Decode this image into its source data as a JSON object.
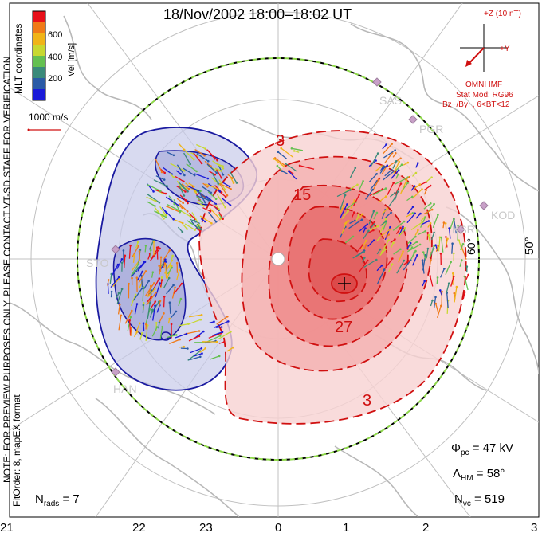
{
  "title": "18/Nov/2002 18:00–18:02 UT",
  "side_note_1": "NOTE: FOR PREVIEW PURPOSES ONLY. PLEASE CONTACT VT-SD STAFF FOR VERIFICATION.",
  "side_note_2": "FitOrder: 8, mapEX format",
  "coords_label": "MLT coordinates",
  "colorbar": {
    "label": "Vel [m/s]",
    "ticks": [
      "600",
      "400",
      "200"
    ],
    "colors": [
      "#e8101a",
      "#f07a18",
      "#f0b418",
      "#c8d830",
      "#64c050",
      "#3a8a7a",
      "#2a5aa6",
      "#1a1ad8"
    ]
  },
  "scale_vector": "1000 m/s",
  "imf": {
    "z_label": "+Z (10 nT)",
    "y_label": "+Y",
    "source": "OMNI IMF",
    "model": "Stat Mod: RG96",
    "condition": "Bz−/By−, 6<BT<12"
  },
  "stations": [
    "SAS",
    "PGR",
    "KOD",
    "KSR",
    "STO",
    "HAN"
  ],
  "latitude_label": "50°",
  "latitude_label_small": "60°",
  "contour_labels": [
    "3",
    "15",
    "27",
    "3"
  ],
  "stats": {
    "phi_pc": "Φpc = 47 kV",
    "lambda_hm": "ΛHM = 58°",
    "n_vc": "Nvc = 519",
    "n_rads": "Nrads = 7"
  },
  "hours": [
    "21",
    "22",
    "23",
    "0",
    "1",
    "2",
    "3"
  ],
  "colors": {
    "positive": "#d01010",
    "negative": "#1a1aa0",
    "land": "#b8b8b8"
  }
}
